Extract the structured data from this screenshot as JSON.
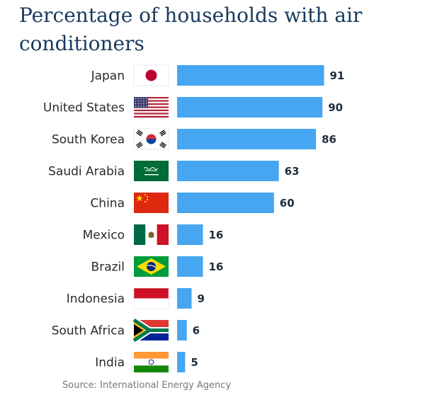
{
  "title": "Percentage of households with air conditioners",
  "source": "Source: International Energy Agency",
  "colors": {
    "bar": "#46a6f1",
    "title": "#173a5e"
  },
  "chart_data": {
    "type": "bar",
    "orientation": "horizontal",
    "title": "Percentage of households with air conditioners",
    "categories": [
      "Japan",
      "United States",
      "South Korea",
      "Saudi Arabia",
      "China",
      "Mexico",
      "Brazil",
      "Indonesia",
      "South Africa",
      "India"
    ],
    "values": [
      91,
      90,
      86,
      63,
      60,
      16,
      16,
      9,
      6,
      5
    ],
    "data_labels": [
      "91",
      "90",
      "86",
      "63",
      "60",
      "16",
      "16",
      "9",
      "6",
      "5"
    ],
    "icons": [
      "japan-flag-icon",
      "united-states-flag-icon",
      "south-korea-flag-icon",
      "saudi-arabia-flag-icon",
      "china-flag-icon",
      "mexico-flag-icon",
      "brazil-flag-icon",
      "indonesia-flag-icon",
      "south-africa-flag-icon",
      "india-flag-icon"
    ],
    "xlabel": "",
    "ylabel": "",
    "xlim": [
      0,
      100
    ],
    "grid": false,
    "legend": "none"
  }
}
